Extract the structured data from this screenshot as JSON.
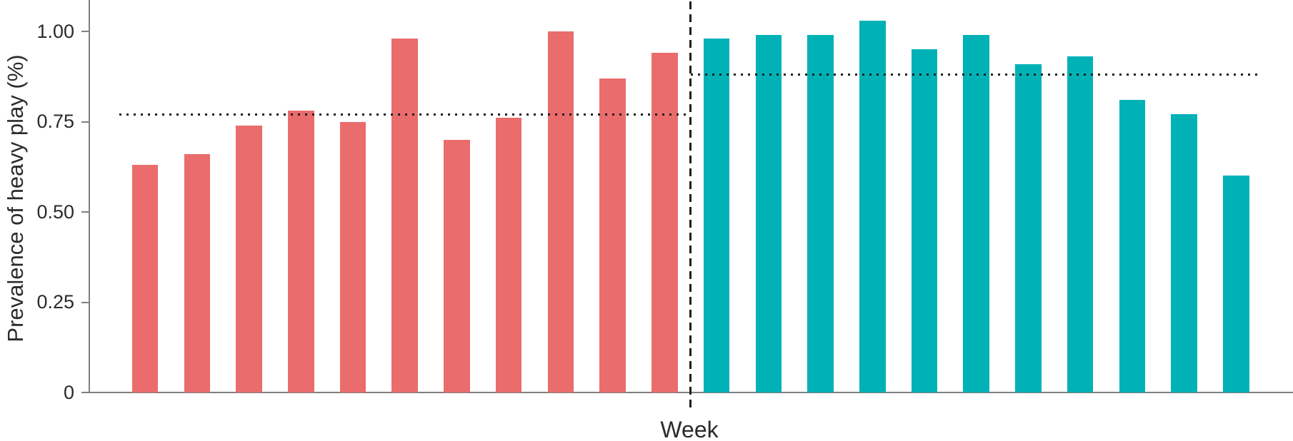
{
  "chart_data": {
    "type": "bar",
    "title": "",
    "xlabel": "Week",
    "ylabel": "Prevalence of heavy play (%)",
    "ylim": [
      0,
      1.09
    ],
    "ytick_values": [
      0,
      0.25,
      0.5,
      0.75,
      1.0
    ],
    "ytick_labels": [
      "0",
      "0.25",
      "0.50",
      "0.75",
      "1.00"
    ],
    "grid": false,
    "legend": "none",
    "x_tick_labels": "none",
    "series": [
      {
        "name": "left-group-red",
        "color": "#ea6c6c",
        "values": [
          0.63,
          0.66,
          0.74,
          0.78,
          0.75,
          0.98,
          0.7,
          0.76,
          1.0,
          0.87,
          0.94
        ],
        "dotted_reference_line": 0.77
      },
      {
        "name": "right-group-teal",
        "color": "#00b1b6",
        "values": [
          0.98,
          0.99,
          0.99,
          1.03,
          0.95,
          0.99,
          0.91,
          0.93,
          0.81,
          0.77,
          0.6
        ],
        "dotted_reference_line": 0.88
      }
    ],
    "separator": {
      "type": "vertical-dashed-line",
      "position": "between-groups",
      "color": "#1f1f1f"
    },
    "style": {
      "axis_color": "#7f7f7f",
      "text_color": "#2b2b2b",
      "reference_line_color": "#1f1f1f"
    }
  }
}
